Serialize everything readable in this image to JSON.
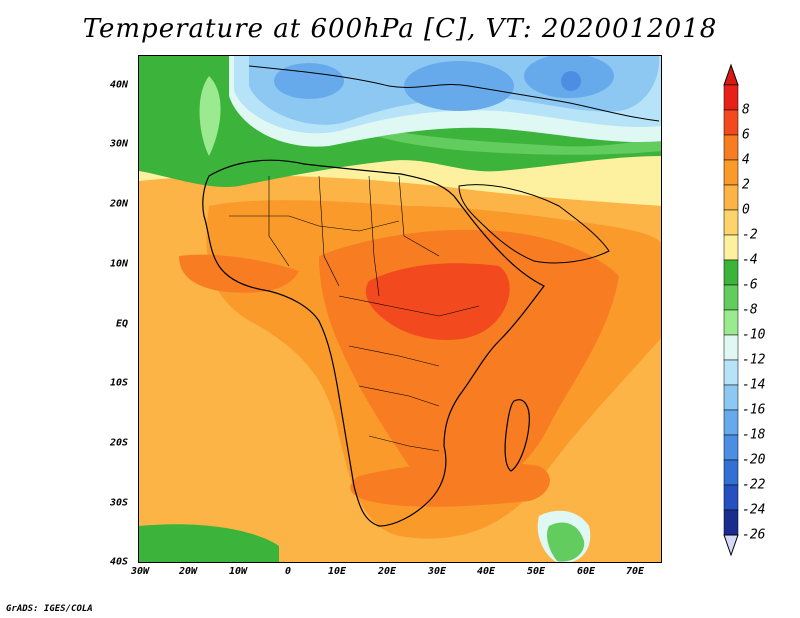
{
  "title": "Temperature at 600hPa [C], VT: 2020012018",
  "credit": "GrADS: IGES/COLA",
  "lat_labels": [
    "40N",
    "30N",
    "20N",
    "10N",
    "EQ",
    "10S",
    "20S",
    "30S",
    "40S"
  ],
  "lon_labels": [
    "30W",
    "20W",
    "10W",
    "0",
    "10E",
    "20E",
    "30E",
    "40E",
    "50E",
    "60E",
    "70E"
  ],
  "colorbar": {
    "labels": [
      "8",
      "6",
      "4",
      "2",
      "0",
      "-2",
      "-4",
      "-6",
      "-8",
      "-10",
      "-12",
      "-14",
      "-16",
      "-18",
      "-20",
      "-22",
      "-24",
      "-26"
    ],
    "colors": [
      "#e8201a",
      "#f24a1e",
      "#f87c22",
      "#fa9a2a",
      "#fbb445",
      "#fcd46c",
      "#fdf1a0",
      "#3cb43c",
      "#62cd5e",
      "#9bea8f",
      "#e0f8f4",
      "#b6e3f7",
      "#8cc8f2",
      "#67aaec",
      "#4c8ee2",
      "#3370d5",
      "#2450c0",
      "#1a2d8e"
    ],
    "over_color": "#d91a14",
    "under_color": "#d6d8f8"
  },
  "map_colors": {
    "ocean_warm": "#fbb445",
    "land_warm": "#fa9a2a",
    "hot": "#f87c22",
    "hottest": "#f24a1e",
    "mild": "#fcd46c",
    "cool": "#fdf1a0",
    "green": "#3cb43c",
    "light_green": "#62cd5e",
    "pale_green": "#9bea8f",
    "cyan": "#e0f8f4",
    "light_blue": "#b6e3f7",
    "blue": "#8cc8f2",
    "mid_blue": "#67aaec",
    "deep_blue": "#4c8ee2",
    "darker_blue": "#3370d5"
  }
}
